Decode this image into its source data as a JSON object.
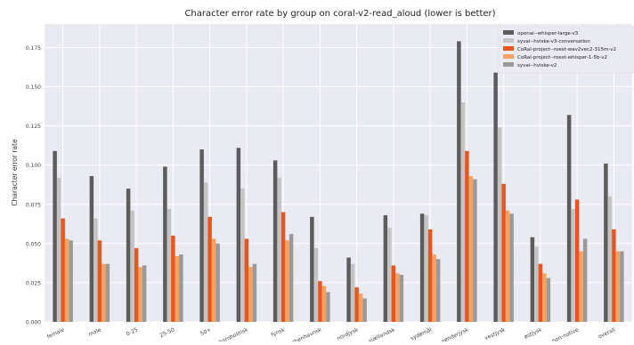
{
  "chart_data": {
    "type": "bar",
    "title": "Character error rate by group on coral-v2-read_aloud (lower is better)",
    "xlabel": "",
    "ylabel": "Character error rate",
    "ylim": [
      0,
      0.19
    ],
    "yticks": [
      "0.000",
      "0.025",
      "0.050",
      "0.075",
      "0.100",
      "0.125",
      "0.150",
      "0.175"
    ],
    "grid": true,
    "legend_position": "top-right",
    "categories": [
      "female",
      "male",
      "0-25",
      "25-50",
      "50+",
      "bornholmsk",
      "fynsk",
      "københavnsk",
      "nordjysk",
      "sjællandsk",
      "sydømål",
      "sønderjysk",
      "vestjysk",
      "østjysk",
      "non-native",
      "overall"
    ],
    "series": [
      {
        "name": "openai--whisper-large-v3",
        "color": "#5c5c5c",
        "values": [
          0.109,
          0.093,
          0.085,
          0.099,
          0.11,
          0.111,
          0.103,
          0.067,
          0.041,
          0.068,
          0.069,
          0.179,
          0.159,
          0.054,
          0.132,
          0.101
        ]
      },
      {
        "name": "syvai--hviske-v3-conversation",
        "color": "#c4c4c4",
        "values": [
          0.092,
          0.066,
          0.071,
          0.072,
          0.089,
          0.085,
          0.092,
          0.047,
          0.037,
          0.06,
          0.068,
          0.14,
          0.124,
          0.048,
          0.072,
          0.08
        ]
      },
      {
        "name": "CoRal-project--roest-wav2vec2-315m-v2",
        "color": "#e8561f",
        "values": [
          0.066,
          0.052,
          0.047,
          0.055,
          0.067,
          0.053,
          0.07,
          0.026,
          0.022,
          0.036,
          0.059,
          0.109,
          0.088,
          0.037,
          0.078,
          0.059
        ]
      },
      {
        "name": "CoRal-project--roest-whisper-1-5b-v2",
        "color": "#f7a261",
        "values": [
          0.053,
          0.037,
          0.035,
          0.042,
          0.053,
          0.035,
          0.052,
          0.023,
          0.018,
          0.031,
          0.043,
          0.093,
          0.071,
          0.031,
          0.045,
          0.045
        ]
      },
      {
        "name": "syvai--hviske-v2",
        "color": "#9a9a9a",
        "values": [
          0.052,
          0.037,
          0.036,
          0.043,
          0.05,
          0.037,
          0.056,
          0.019,
          0.015,
          0.03,
          0.04,
          0.091,
          0.069,
          0.028,
          0.053,
          0.045
        ]
      }
    ]
  }
}
